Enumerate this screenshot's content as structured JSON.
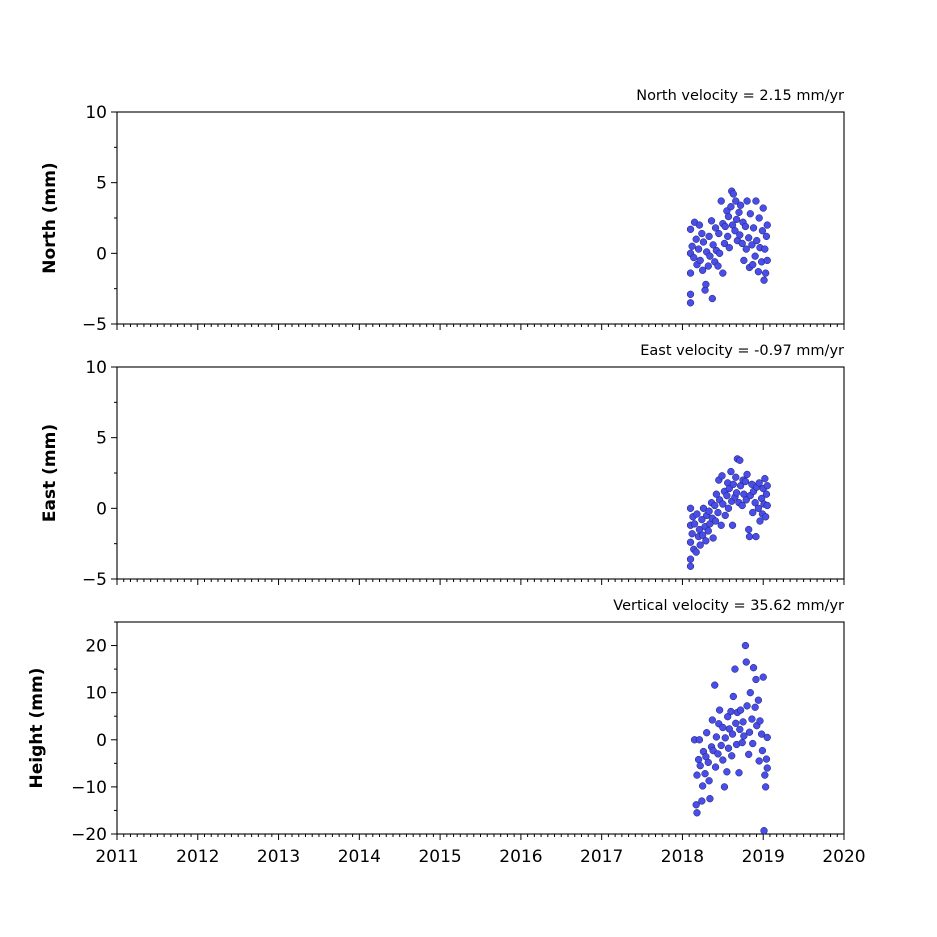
{
  "chart_data": [
    {
      "type": "scatter",
      "title": "North velocity = 2.15 mm/yr",
      "ylabel": "North (mm)",
      "xlim": [
        2011,
        2020
      ],
      "ylim": [
        -5,
        10
      ],
      "yticks": [
        -5,
        0,
        5,
        10
      ],
      "ytick_labels": [
        "−5",
        "0",
        "5",
        "10"
      ],
      "color": "#4a4ee8",
      "points": [
        [
          2018.1,
          0.0
        ],
        [
          2018.1,
          -1.4
        ],
        [
          2018.1,
          -3.5
        ],
        [
          2018.1,
          -2.9
        ],
        [
          2018.1,
          1.7
        ],
        [
          2018.12,
          0.5
        ],
        [
          2018.14,
          -0.3
        ],
        [
          2018.15,
          2.2
        ],
        [
          2018.17,
          1.0
        ],
        [
          2018.18,
          -0.8
        ],
        [
          2018.2,
          0.3
        ],
        [
          2018.21,
          2.0
        ],
        [
          2018.22,
          -0.5
        ],
        [
          2018.24,
          1.4
        ],
        [
          2018.25,
          -1.2
        ],
        [
          2018.26,
          0.8
        ],
        [
          2018.28,
          -2.6
        ],
        [
          2018.29,
          -2.2
        ],
        [
          2018.3,
          0.1
        ],
        [
          2018.32,
          -0.9
        ],
        [
          2018.33,
          1.2
        ],
        [
          2018.34,
          -0.2
        ],
        [
          2018.36,
          2.3
        ],
        [
          2018.37,
          -3.2
        ],
        [
          2018.38,
          0.6
        ],
        [
          2018.4,
          -0.6
        ],
        [
          2018.41,
          1.8
        ],
        [
          2018.42,
          0.2
        ],
        [
          2018.44,
          -0.9
        ],
        [
          2018.45,
          1.4
        ],
        [
          2018.46,
          0.0
        ],
        [
          2018.48,
          3.7
        ],
        [
          2018.5,
          2.1
        ],
        [
          2018.5,
          -1.4
        ],
        [
          2018.52,
          0.7
        ],
        [
          2018.53,
          1.9
        ],
        [
          2018.55,
          3.0
        ],
        [
          2018.56,
          1.2
        ],
        [
          2018.57,
          2.6
        ],
        [
          2018.58,
          0.4
        ],
        [
          2018.6,
          3.3
        ],
        [
          2018.61,
          4.4
        ],
        [
          2018.62,
          2.0
        ],
        [
          2018.63,
          4.2
        ],
        [
          2018.65,
          1.6
        ],
        [
          2018.66,
          3.7
        ],
        [
          2018.67,
          2.4
        ],
        [
          2018.68,
          0.9
        ],
        [
          2018.7,
          2.9
        ],
        [
          2018.71,
          1.3
        ],
        [
          2018.72,
          3.4
        ],
        [
          2018.74,
          0.7
        ],
        [
          2018.75,
          2.2
        ],
        [
          2018.76,
          -0.5
        ],
        [
          2018.78,
          1.9
        ],
        [
          2018.79,
          0.3
        ],
        [
          2018.8,
          3.7
        ],
        [
          2018.82,
          1.1
        ],
        [
          2018.83,
          -1.0
        ],
        [
          2018.84,
          2.8
        ],
        [
          2018.86,
          0.6
        ],
        [
          2018.87,
          -0.8
        ],
        [
          2018.88,
          1.8
        ],
        [
          2018.9,
          -0.2
        ],
        [
          2018.91,
          3.7
        ],
        [
          2018.92,
          0.9
        ],
        [
          2018.94,
          -1.3
        ],
        [
          2018.95,
          2.5
        ],
        [
          2018.96,
          0.4
        ],
        [
          2018.98,
          -0.6
        ],
        [
          2018.99,
          1.6
        ],
        [
          2019.0,
          3.2
        ],
        [
          2019.01,
          -1.9
        ],
        [
          2019.02,
          0.3
        ],
        [
          2019.03,
          -1.4
        ],
        [
          2019.04,
          1.2
        ],
        [
          2019.05,
          2.0
        ],
        [
          2019.05,
          -0.5
        ]
      ]
    },
    {
      "type": "scatter",
      "title": "East velocity = -0.97 mm/yr",
      "ylabel": "East (mm)",
      "xlim": [
        2011,
        2020
      ],
      "ylim": [
        -5,
        10
      ],
      "yticks": [
        -5,
        0,
        5,
        10
      ],
      "ytick_labels": [
        "−5",
        "0",
        "5",
        "10"
      ],
      "color": "#4a4ee8",
      "points": [
        [
          2018.1,
          0.0
        ],
        [
          2018.1,
          -1.2
        ],
        [
          2018.1,
          -2.4
        ],
        [
          2018.1,
          -4.1
        ],
        [
          2018.1,
          -3.6
        ],
        [
          2018.12,
          -1.8
        ],
        [
          2018.13,
          -0.6
        ],
        [
          2018.14,
          -2.9
        ],
        [
          2018.15,
          -1.1
        ],
        [
          2018.17,
          -3.1
        ],
        [
          2018.18,
          -0.4
        ],
        [
          2018.2,
          -2.0
        ],
        [
          2018.21,
          -1.5
        ],
        [
          2018.22,
          -2.6
        ],
        [
          2018.24,
          -0.8
        ],
        [
          2018.25,
          -1.9
        ],
        [
          2018.26,
          0.0
        ],
        [
          2018.28,
          -1.3
        ],
        [
          2018.29,
          -2.3
        ],
        [
          2018.3,
          -0.5
        ],
        [
          2018.32,
          -1.6
        ],
        [
          2018.33,
          -0.2
        ],
        [
          2018.34,
          -1.1
        ],
        [
          2018.36,
          0.4
        ],
        [
          2018.37,
          -0.7
        ],
        [
          2018.38,
          -2.1
        ],
        [
          2018.4,
          0.2
        ],
        [
          2018.41,
          -0.9
        ],
        [
          2018.42,
          1.0
        ],
        [
          2018.44,
          -0.3
        ],
        [
          2018.45,
          2.0
        ],
        [
          2018.46,
          0.6
        ],
        [
          2018.48,
          -1.2
        ],
        [
          2018.49,
          2.3
        ],
        [
          2018.5,
          0.3
        ],
        [
          2018.52,
          1.2
        ],
        [
          2018.53,
          -0.5
        ],
        [
          2018.55,
          0.9
        ],
        [
          2018.56,
          1.8
        ],
        [
          2018.57,
          0.0
        ],
        [
          2018.58,
          1.4
        ],
        [
          2018.6,
          2.6
        ],
        [
          2018.61,
          0.5
        ],
        [
          2018.62,
          -1.2
        ],
        [
          2018.63,
          1.7
        ],
        [
          2018.65,
          0.8
        ],
        [
          2018.66,
          2.2
        ],
        [
          2018.67,
          1.1
        ],
        [
          2018.68,
          3.5
        ],
        [
          2018.7,
          0.4
        ],
        [
          2018.71,
          3.4
        ],
        [
          2018.72,
          1.6
        ],
        [
          2018.74,
          0.2
        ],
        [
          2018.75,
          2.0
        ],
        [
          2018.76,
          1.0
        ],
        [
          2018.78,
          1.9
        ],
        [
          2018.79,
          0.6
        ],
        [
          2018.8,
          2.4
        ],
        [
          2018.82,
          -1.5
        ],
        [
          2018.83,
          -2.0
        ],
        [
          2018.84,
          0.9
        ],
        [
          2018.86,
          1.7
        ],
        [
          2018.87,
          -0.3
        ],
        [
          2018.88,
          1.2
        ],
        [
          2018.9,
          0.4
        ],
        [
          2018.91,
          -2.0
        ],
        [
          2018.92,
          1.5
        ],
        [
          2018.94,
          0.0
        ],
        [
          2018.95,
          1.8
        ],
        [
          2018.96,
          -0.9
        ],
        [
          2018.98,
          0.7
        ],
        [
          2018.99,
          -0.4
        ],
        [
          2019.0,
          1.4
        ],
        [
          2019.01,
          0.3
        ],
        [
          2019.02,
          2.1
        ],
        [
          2019.03,
          -0.6
        ],
        [
          2019.04,
          1.0
        ],
        [
          2019.05,
          1.6
        ],
        [
          2019.05,
          0.2
        ]
      ]
    },
    {
      "type": "scatter",
      "title": "Vertical velocity = 35.62 mm/yr",
      "ylabel": "Height (mm)",
      "xlim": [
        2011,
        2020
      ],
      "ylim": [
        -20,
        25
      ],
      "yticks": [
        -20,
        -10,
        0,
        10,
        20
      ],
      "ytick_labels": [
        "−20",
        "−10",
        "0",
        "10",
        "20"
      ],
      "color": "#4a4ee8",
      "points": [
        [
          2018.15,
          0.0
        ],
        [
          2018.17,
          -13.8
        ],
        [
          2018.18,
          -15.5
        ],
        [
          2018.18,
          -7.5
        ],
        [
          2018.2,
          -4.2
        ],
        [
          2018.21,
          0.0
        ],
        [
          2018.22,
          -5.5
        ],
        [
          2018.24,
          -13.0
        ],
        [
          2018.25,
          -9.8
        ],
        [
          2018.26,
          -2.5
        ],
        [
          2018.28,
          -7.2
        ],
        [
          2018.29,
          -3.6
        ],
        [
          2018.3,
          1.5
        ],
        [
          2018.32,
          -4.8
        ],
        [
          2018.33,
          -8.7
        ],
        [
          2018.34,
          -12.5
        ],
        [
          2018.36,
          -1.5
        ],
        [
          2018.37,
          4.2
        ],
        [
          2018.38,
          -2.3
        ],
        [
          2018.4,
          11.6
        ],
        [
          2018.41,
          -5.8
        ],
        [
          2018.42,
          0.6
        ],
        [
          2018.44,
          -3.0
        ],
        [
          2018.45,
          3.4
        ],
        [
          2018.46,
          6.3
        ],
        [
          2018.48,
          -1.2
        ],
        [
          2018.5,
          -4.3
        ],
        [
          2018.5,
          2.6
        ],
        [
          2018.52,
          -10.0
        ],
        [
          2018.53,
          0.4
        ],
        [
          2018.55,
          -6.8
        ],
        [
          2018.56,
          4.9
        ],
        [
          2018.57,
          -1.8
        ],
        [
          2018.58,
          2.3
        ],
        [
          2018.6,
          6.0
        ],
        [
          2018.61,
          -3.4
        ],
        [
          2018.62,
          1.2
        ],
        [
          2018.63,
          9.2
        ],
        [
          2018.65,
          15.0
        ],
        [
          2018.66,
          3.5
        ],
        [
          2018.67,
          -1.0
        ],
        [
          2018.68,
          5.8
        ],
        [
          2018.7,
          -7.0
        ],
        [
          2018.71,
          2.2
        ],
        [
          2018.72,
          6.3
        ],
        [
          2018.74,
          -0.6
        ],
        [
          2018.75,
          3.8
        ],
        [
          2018.76,
          0.8
        ],
        [
          2018.78,
          20.0
        ],
        [
          2018.79,
          16.5
        ],
        [
          2018.8,
          7.2
        ],
        [
          2018.82,
          -3.1
        ],
        [
          2018.83,
          1.6
        ],
        [
          2018.84,
          10.0
        ],
        [
          2018.86,
          4.4
        ],
        [
          2018.87,
          -0.8
        ],
        [
          2018.88,
          15.3
        ],
        [
          2018.9,
          6.9
        ],
        [
          2018.91,
          12.8
        ],
        [
          2018.92,
          3.0
        ],
        [
          2018.94,
          8.4
        ],
        [
          2018.95,
          -4.5
        ],
        [
          2018.96,
          4.0
        ],
        [
          2018.98,
          1.2
        ],
        [
          2018.99,
          -2.3
        ],
        [
          2019.0,
          13.3
        ],
        [
          2019.01,
          -19.3
        ],
        [
          2019.02,
          -7.5
        ],
        [
          2019.03,
          -10.0
        ],
        [
          2019.04,
          -4.1
        ],
        [
          2019.05,
          -6.0
        ],
        [
          2019.05,
          0.5
        ]
      ]
    }
  ],
  "x_axis": {
    "ticks": [
      2011,
      2012,
      2013,
      2014,
      2015,
      2016,
      2017,
      2018,
      2019,
      2020
    ],
    "tick_labels": [
      "2011",
      "2012",
      "2013",
      "2014",
      "2015",
      "2016",
      "2017",
      "2018",
      "2019",
      "2020"
    ]
  }
}
